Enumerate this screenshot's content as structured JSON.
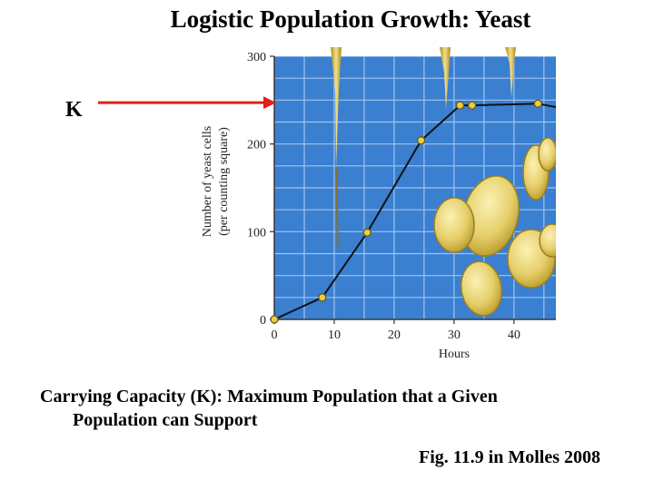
{
  "slide": {
    "title": "Logistic Population Growth: Yeast",
    "k_label": "K",
    "caption_line1": "Carrying Capacity (K): Maximum Population that a Given",
    "caption_line2": "Population can Support",
    "source": "Fig. 11.9 in Molles 2008"
  },
  "chart_data": {
    "type": "line",
    "title": "",
    "xlabel": "Hours",
    "ylabel_line1": "Number of yeast cells",
    "ylabel_line2": "(per counting square)",
    "xlim": [
      0,
      47
    ],
    "ylim": [
      0,
      300
    ],
    "x_ticks": [
      0,
      10,
      20,
      30,
      40
    ],
    "y_ticks": [
      0,
      100,
      200,
      300
    ],
    "grid": true,
    "series": [
      {
        "x": [
          0,
          8,
          15.5,
          24.5,
          31,
          33,
          44,
          47
        ],
        "y": [
          0,
          25,
          99,
          204,
          244,
          244,
          246,
          242
        ]
      }
    ],
    "carrying_capacity_arrow_y": 245,
    "colors": {
      "plot_background": "#3a7fd0",
      "grid": "#9fc4ee",
      "line": "#111111",
      "marker_fill": "#e8cf4a",
      "marker_stroke": "#6b5a10",
      "arrow": "#e3201b",
      "yeast_cell": "#e8d478"
    }
  }
}
